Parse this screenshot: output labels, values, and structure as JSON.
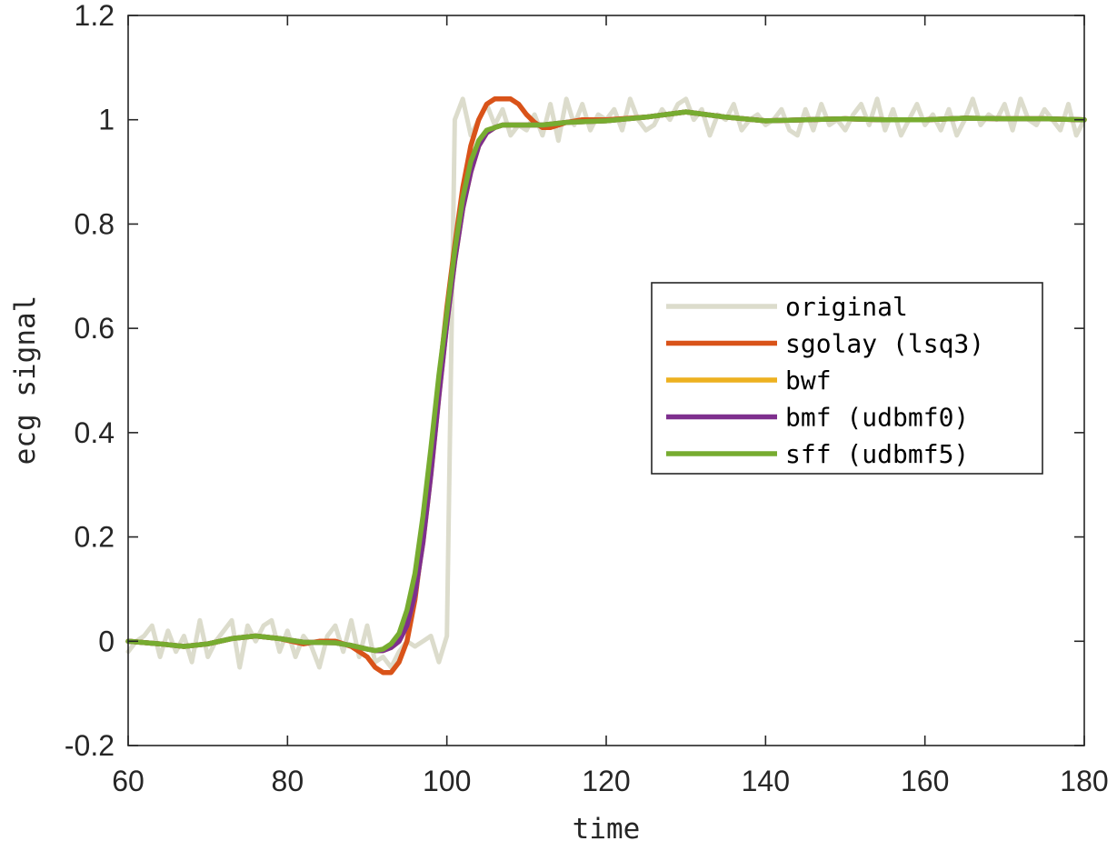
{
  "chart_data": {
    "type": "line",
    "title": "",
    "xlabel": "time",
    "ylabel": "ecg signal",
    "xlim": [
      60,
      180
    ],
    "ylim": [
      -0.2,
      1.2
    ],
    "x_ticks": [
      "60",
      "80",
      "100",
      "120",
      "140",
      "160",
      "180"
    ],
    "y_ticks": [
      "-0.2",
      "0",
      "0.2",
      "0.4",
      "0.6",
      "0.8",
      "1",
      "1.2"
    ],
    "grid": false,
    "box": true,
    "legend_position": "right",
    "series": [
      {
        "name": "original",
        "color": "#DCDCCC",
        "x": [
          60,
          61,
          62,
          63,
          64,
          65,
          66,
          67,
          68,
          69,
          70,
          71,
          72,
          73,
          74,
          75,
          76,
          77,
          78,
          79,
          80,
          81,
          82,
          83,
          84,
          85,
          86,
          87,
          88,
          89,
          90,
          91,
          92,
          93,
          94,
          95,
          96,
          97,
          98,
          99,
          100,
          101,
          102,
          103,
          104,
          105,
          106,
          107,
          108,
          109,
          110,
          111,
          112,
          113,
          114,
          115,
          116,
          117,
          118,
          119,
          120,
          121,
          122,
          123,
          124,
          125,
          126,
          127,
          128,
          129,
          130,
          131,
          132,
          133,
          134,
          135,
          136,
          137,
          138,
          139,
          140,
          141,
          142,
          143,
          144,
          145,
          146,
          147,
          148,
          149,
          150,
          151,
          152,
          153,
          154,
          155,
          156,
          157,
          158,
          159,
          160,
          161,
          162,
          163,
          164,
          165,
          166,
          167,
          168,
          169,
          170,
          171,
          172,
          173,
          174,
          175,
          176,
          177,
          178,
          179,
          180
        ],
        "values": [
          -0.02,
          0.0,
          0.01,
          0.03,
          -0.03,
          0.02,
          -0.02,
          0.01,
          -0.04,
          0.04,
          -0.03,
          0.0,
          0.02,
          0.04,
          -0.05,
          0.03,
          0.0,
          0.03,
          0.04,
          -0.02,
          0.02,
          -0.03,
          0.01,
          -0.01,
          -0.05,
          0.01,
          0.03,
          -0.02,
          0.04,
          -0.03,
          0.03,
          -0.04,
          -0.03,
          -0.05,
          -0.02,
          0.0,
          -0.01,
          0.0,
          0.01,
          -0.04,
          0.01,
          1.0,
          1.04,
          0.97,
          1.0,
          1.03,
          0.99,
          1.02,
          0.97,
          0.99,
          0.98,
          1.01,
          0.97,
          1.03,
          0.96,
          1.04,
          0.99,
          1.03,
          0.98,
          1.01,
          1.0,
          1.02,
          0.98,
          1.04,
          1.0,
          0.98,
          0.99,
          1.02,
          1.0,
          1.03,
          1.04,
          1.0,
          1.02,
          0.97,
          1.01,
          1.0,
          1.03,
          0.98,
          1.0,
          1.01,
          0.99,
          1.0,
          1.02,
          0.98,
          0.97,
          1.02,
          0.98,
          1.03,
          0.99,
          1.0,
          0.98,
          1.01,
          1.03,
          0.99,
          1.04,
          0.98,
          1.02,
          0.97,
          1.0,
          1.03,
          0.99,
          1.01,
          0.98,
          1.02,
          0.97,
          1.0,
          1.04,
          0.99,
          1.01,
          1.0,
          1.03,
          0.98,
          1.04,
          1.0,
          0.99,
          1.02,
          1.0,
          0.98,
          1.03,
          0.97,
          1.0
        ]
      },
      {
        "name": "sgolay (lsq3)",
        "color": "#D95319",
        "x": [
          60,
          64,
          67,
          70,
          73,
          76,
          79,
          82,
          84,
          86,
          88,
          90,
          91,
          92,
          93,
          94,
          95,
          96,
          97,
          98,
          99,
          100,
          101,
          102,
          103,
          104,
          105,
          106,
          107,
          108,
          109,
          110,
          111,
          112,
          113,
          114,
          115,
          117,
          120,
          125,
          130,
          135,
          140,
          145,
          150,
          155,
          160,
          165,
          170,
          175,
          180
        ],
        "values": [
          0.0,
          -0.005,
          -0.01,
          -0.005,
          0.005,
          0.01,
          0.005,
          -0.005,
          0.0,
          0.0,
          -0.01,
          -0.03,
          -0.05,
          -0.06,
          -0.06,
          -0.04,
          0.0,
          0.08,
          0.2,
          0.35,
          0.5,
          0.64,
          0.76,
          0.87,
          0.95,
          1.0,
          1.03,
          1.04,
          1.04,
          1.04,
          1.03,
          1.01,
          0.995,
          0.985,
          0.985,
          0.99,
          0.995,
          1.0,
          1.0,
          1.005,
          1.015,
          1.005,
          0.998,
          1.0,
          1.002,
          1.0,
          1.0,
          1.003,
          1.002,
          1.002,
          1.0
        ]
      },
      {
        "name": "bwf",
        "color": "#EDB120",
        "x": [
          60,
          64,
          67,
          70,
          73,
          76,
          79,
          82,
          86,
          88,
          90,
          91,
          92,
          93,
          94,
          95,
          96,
          97,
          98,
          99,
          100,
          101,
          102,
          103,
          104,
          105,
          106,
          107,
          108,
          110,
          112,
          115,
          120,
          125,
          130,
          135,
          140,
          145,
          150,
          155,
          160,
          165,
          170,
          175,
          180
        ],
        "values": [
          0.0,
          -0.005,
          -0.01,
          -0.005,
          0.005,
          0.01,
          0.005,
          -0.002,
          -0.003,
          -0.008,
          -0.015,
          -0.018,
          -0.018,
          -0.012,
          0.0,
          0.03,
          0.09,
          0.19,
          0.32,
          0.47,
          0.61,
          0.73,
          0.83,
          0.9,
          0.95,
          0.975,
          0.985,
          0.99,
          0.99,
          0.99,
          0.99,
          0.995,
          0.998,
          1.005,
          1.015,
          1.005,
          0.998,
          1.0,
          1.002,
          1.0,
          1.0,
          1.003,
          1.002,
          1.002,
          1.0
        ]
      },
      {
        "name": "bmf (udbmf0)",
        "color": "#7E2F8E",
        "x": [
          60,
          64,
          67,
          70,
          73,
          76,
          79,
          82,
          86,
          88,
          90,
          91,
          92,
          93,
          94,
          95,
          96,
          97,
          98,
          99,
          100,
          101,
          102,
          103,
          104,
          105,
          106,
          107,
          108,
          110,
          112,
          115,
          120,
          125,
          130,
          135,
          140,
          145,
          150,
          155,
          160,
          165,
          170,
          175,
          180
        ],
        "values": [
          0.0,
          -0.005,
          -0.01,
          -0.005,
          0.005,
          0.01,
          0.005,
          -0.002,
          -0.003,
          -0.008,
          -0.015,
          -0.018,
          -0.018,
          -0.012,
          0.0,
          0.03,
          0.09,
          0.19,
          0.32,
          0.47,
          0.61,
          0.73,
          0.83,
          0.9,
          0.95,
          0.975,
          0.985,
          0.99,
          0.99,
          0.99,
          0.99,
          0.995,
          0.998,
          1.005,
          1.015,
          1.005,
          0.998,
          1.0,
          1.002,
          1.0,
          1.0,
          1.003,
          1.002,
          1.002,
          1.0
        ]
      },
      {
        "name": "sff (udbmf5)",
        "color": "#77AC30",
        "x": [
          60,
          64,
          67,
          70,
          73,
          76,
          79,
          82,
          86,
          88,
          90,
          91,
          92,
          93,
          94,
          95,
          96,
          97,
          98,
          99,
          100,
          101,
          102,
          103,
          104,
          105,
          106,
          107,
          108,
          110,
          112,
          115,
          120,
          125,
          130,
          135,
          140,
          145,
          150,
          155,
          160,
          165,
          170,
          175,
          180
        ],
        "values": [
          0.0,
          -0.005,
          -0.01,
          -0.005,
          0.005,
          0.01,
          0.005,
          -0.002,
          -0.003,
          -0.008,
          -0.015,
          -0.018,
          -0.015,
          -0.005,
          0.015,
          0.06,
          0.13,
          0.24,
          0.37,
          0.51,
          0.63,
          0.75,
          0.85,
          0.92,
          0.96,
          0.98,
          0.985,
          0.99,
          0.99,
          0.99,
          0.99,
          0.995,
          0.998,
          1.005,
          1.015,
          1.005,
          0.998,
          1.0,
          1.002,
          1.0,
          1.0,
          1.003,
          1.002,
          1.002,
          1.0
        ]
      }
    ]
  }
}
